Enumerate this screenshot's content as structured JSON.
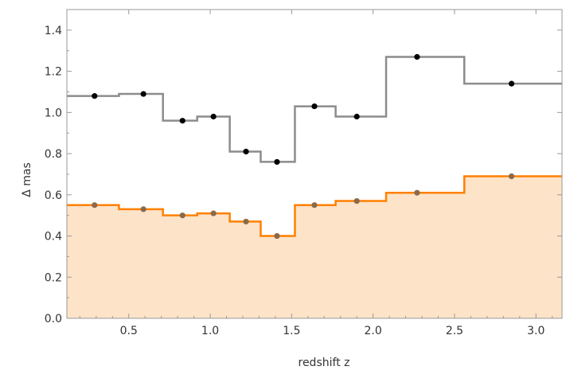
{
  "chart_data": {
    "type": "line",
    "step": true,
    "xlabel": "redshift z",
    "ylabel": "Δ  mas",
    "xlim": [
      0.12,
      3.16
    ],
    "ylim": [
      0.0,
      1.5
    ],
    "x_ticks": [
      "0.5",
      "1.0",
      "1.5",
      "2.0",
      "2.5",
      "3.0"
    ],
    "y_ticks": [
      "0.0",
      "0.2",
      "0.4",
      "0.6",
      "0.8",
      "1.0",
      "1.2",
      "1.4"
    ],
    "x_tick_values": [
      0.5,
      1.0,
      1.5,
      2.0,
      2.5,
      3.0
    ],
    "y_tick_values": [
      0.0,
      0.2,
      0.4,
      0.6,
      0.8,
      1.0,
      1.2,
      1.4
    ],
    "bin_edges": [
      0.12,
      0.44,
      0.71,
      0.92,
      1.12,
      1.31,
      1.52,
      1.77,
      2.08,
      2.56,
      3.16
    ],
    "series": [
      {
        "color": "#8c8c8c",
        "marker_color": "#000000",
        "fill": false,
        "x": [
          0.29,
          0.59,
          0.83,
          1.02,
          1.22,
          1.41,
          1.64,
          1.9,
          2.27,
          2.85
        ],
        "values": [
          1.08,
          1.09,
          0.96,
          0.98,
          0.81,
          0.76,
          1.03,
          0.98,
          1.27,
          1.14
        ]
      },
      {
        "color": "#ff8000",
        "marker_color": "#8a6a4a",
        "fill": true,
        "fill_color": "#fde3c8",
        "x": [
          0.29,
          0.59,
          0.83,
          1.02,
          1.22,
          1.41,
          1.64,
          1.9,
          2.27,
          2.85
        ],
        "values": [
          0.55,
          0.53,
          0.5,
          0.51,
          0.47,
          0.4,
          0.55,
          0.57,
          0.61,
          0.69
        ]
      }
    ],
    "grid": false,
    "frame_color": "#999999"
  }
}
